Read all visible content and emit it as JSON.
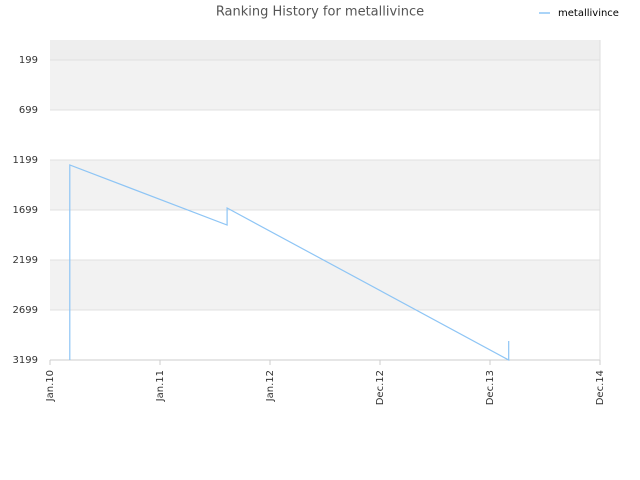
{
  "chart_data": {
    "type": "line",
    "title": "Ranking History for metallivince",
    "x": [
      0.18,
      0.18,
      1.61,
      1.61,
      4.17,
      4.17
    ],
    "series": [
      {
        "name": "metallivince",
        "color": "#8ec5f5",
        "values": [
          3199,
          1249,
          1849,
          1679,
          3199,
          3009
        ]
      }
    ],
    "xlim": [
      0,
      5
    ],
    "xticks": [
      {
        "value": 0,
        "label": "Jan.10"
      },
      {
        "value": 1,
        "label": "Jan.11"
      },
      {
        "value": 2,
        "label": "Jan.12"
      },
      {
        "value": 3,
        "label": "Dec.12"
      },
      {
        "value": 4,
        "label": "Dec.13"
      },
      {
        "value": 5,
        "label": "Dec.14"
      }
    ],
    "ylim": [
      -1,
      3199
    ],
    "y_inverted": true,
    "yticks": [
      199,
      699,
      1199,
      1699,
      2199,
      2699,
      3199
    ],
    "legend": "top-right"
  }
}
